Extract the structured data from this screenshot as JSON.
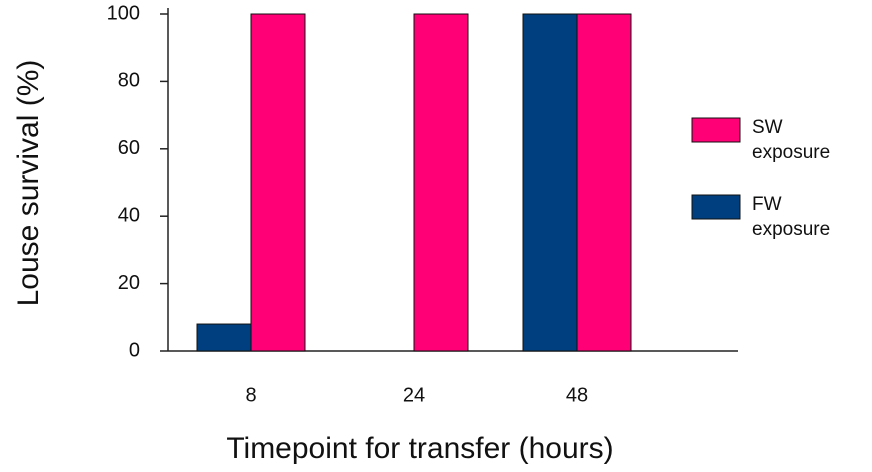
{
  "chart_data": {
    "type": "bar",
    "x_label": "Timepoint for transfer (hours)",
    "y_label": "Louse survival  (%)",
    "categories": [
      "8",
      "24",
      "48"
    ],
    "series": [
      {
        "name": "FW exposure",
        "color": "#003f7f",
        "values": [
          8,
          0,
          100
        ]
      },
      {
        "name": "SW exposure",
        "color": "#ff0077",
        "values": [
          100,
          100,
          100
        ]
      }
    ],
    "ylim": [
      0,
      100
    ],
    "yticks": [
      0,
      20,
      40,
      60,
      80,
      100
    ]
  }
}
